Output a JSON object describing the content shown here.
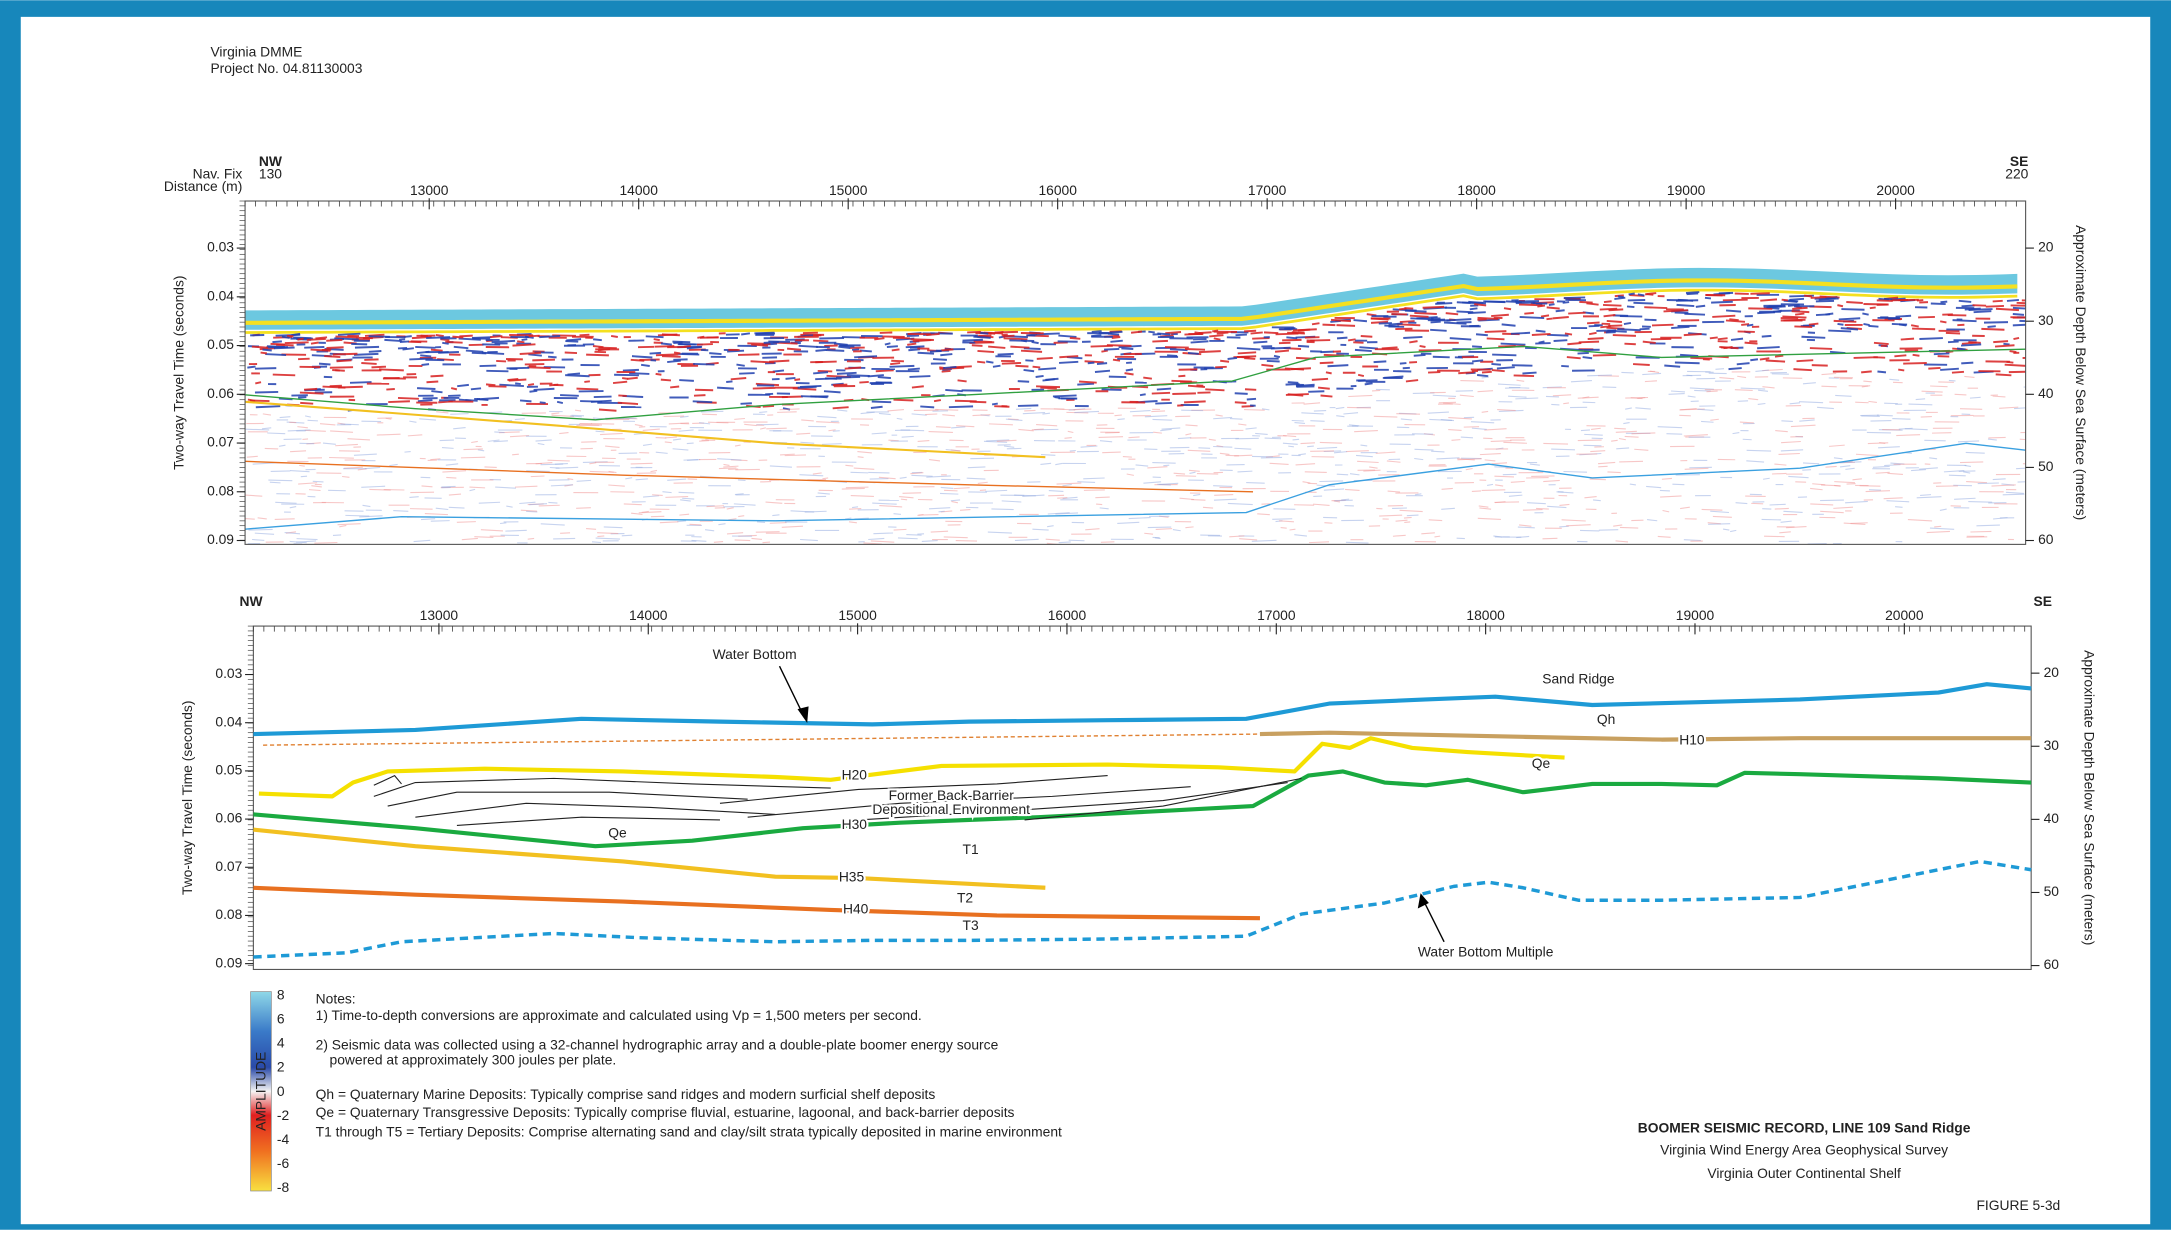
{
  "header": {
    "organization": "Virginia DMME",
    "project": "Project No. 04.81130003"
  },
  "top_panel": {
    "nav_fix_label": "Nav. Fix",
    "distance_label": "Distance (m)",
    "start_direction": "NW",
    "start_fix": 130,
    "end_direction": "SE",
    "end_fix": 220,
    "distance_ticks": [
      13000,
      14000,
      15000,
      16000,
      17000,
      18000,
      19000,
      20000
    ],
    "time_ticks": [
      0.03,
      0.04,
      0.05,
      0.06,
      0.07,
      0.08,
      0.09
    ],
    "depth_ticks": [
      20,
      30,
      40,
      50,
      60
    ],
    "left_axis_title": "Two-way Travel Time (seconds)",
    "right_axis_title": "Approximate Depth Below Sea Surface (meters)"
  },
  "bottom_panel": {
    "start_direction": "NW",
    "end_direction": "SE",
    "distance_ticks": [
      13000,
      14000,
      15000,
      16000,
      17000,
      18000,
      19000,
      20000
    ],
    "time_ticks": [
      0.03,
      0.04,
      0.05,
      0.06,
      0.07,
      0.08,
      0.09
    ],
    "depth_ticks": [
      20,
      30,
      40,
      50,
      60
    ],
    "left_axis_title": "Two-way Travel Time (seconds)",
    "right_axis_title": "Approximate Depth Below Sea Surface (meters)",
    "labels": [
      "Water Bottom",
      "Sand Ridge",
      "Qh",
      "H10",
      "Qe",
      "H20",
      "Former Back-Barrier",
      "Depositional Environment",
      "Qe",
      "H30",
      "T1",
      "H35",
      "T2",
      "H40",
      "T3",
      "Water Bottom Multiple"
    ]
  },
  "color_scale": {
    "title": "AMPLITUDE",
    "ticks": [
      8,
      6,
      4,
      2,
      0,
      -2,
      -4,
      -6,
      -8
    ]
  },
  "notes": {
    "heading": "Notes:",
    "items": [
      "1) Time-to-depth conversions are approximate and calculated using Vp = 1,500 meters per second.",
      "2) Seismic data was collected using a 32-channel hydrographic array and a double-plate boomer energy source",
      "powered at approximately 300 joules per plate."
    ],
    "legend": [
      "Qh = Quaternary Marine Deposits: Typically comprise sand ridges and modern surficial shelf deposits",
      "Qe = Quaternary Transgressive Deposits: Typically comprise fluvial, estuarine, lagoonal, and back-barrier deposits",
      "T1 through T5 = Tertiary Deposits: Comprise alternating sand and clay/silt strata typically deposited in marine environment"
    ]
  },
  "title_block": {
    "title": "BOOMER SEISMIC RECORD, LINE 109 Sand Ridge",
    "subtitle": "Virginia Wind Energy Area Geophysical Survey",
    "location": "Virginia Outer Continental Shelf",
    "figure": "FIGURE 5-3d"
  }
}
